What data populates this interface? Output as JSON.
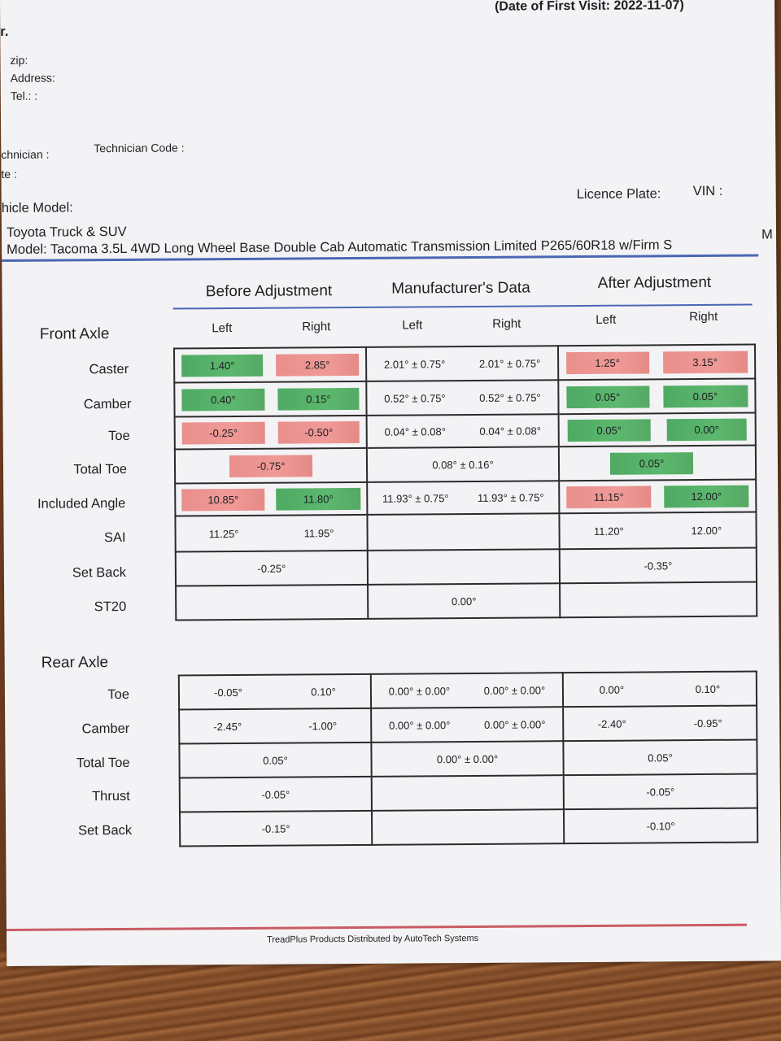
{
  "header": {
    "first_visit": "(Date of First Visit: 2022-11-07)",
    "r_fragment": "r.",
    "zip": "zip:",
    "address": "Address:",
    "tel": "Tel.: :",
    "technician": "chnician :",
    "technician_code": "Technician Code :",
    "te": "te :",
    "vehicle_model": "hicle Model:",
    "licence_plate": "Licence Plate:",
    "vin": "VIN :",
    "make": "Toyota Truck & SUV",
    "model": "Model: Tacoma 3.5L 4WD  Long Wheel Base Double Cab Automatic Transmission Limited P265/60R18 w/Firm S",
    "model_cut": "M"
  },
  "columns": {
    "before": "Before Adjustment",
    "manufacturer": "Manufacturer's Data",
    "after": "After Adjustment",
    "left": "Left",
    "right": "Right"
  },
  "front_axle": {
    "title": "Front Axle",
    "rows": [
      {
        "label": "Caster",
        "before_l": "1.40°",
        "before_l_status": "g",
        "before_r": "2.85°",
        "before_r_status": "r",
        "mfr_l": "2.01° ± 0.75°",
        "mfr_r": "2.01° ± 0.75°",
        "after_l": "1.25°",
        "after_l_status": "r",
        "after_r": "3.15°",
        "after_r_status": "r"
      },
      {
        "label": "Camber",
        "before_l": "0.40°",
        "before_l_status": "g",
        "before_r": "0.15°",
        "before_r_status": "g",
        "mfr_l": "0.52° ± 0.75°",
        "mfr_r": "0.52° ± 0.75°",
        "after_l": "0.05°",
        "after_l_status": "g",
        "after_r": "0.05°",
        "after_r_status": "g"
      },
      {
        "label": "Toe",
        "before_l": "-0.25°",
        "before_l_status": "r",
        "before_r": "-0.50°",
        "before_r_status": "r",
        "mfr_l": "0.04°  ± 0.08°",
        "mfr_r": "0.04°  ± 0.08°",
        "after_l": "0.05°",
        "after_l_status": "g",
        "after_r": "0.00°",
        "after_r_status": "g"
      },
      {
        "label": "Total Toe",
        "before": "-0.75°",
        "before_status": "r",
        "mfr": "0.08°  ± 0.16°",
        "after": "0.05°",
        "after_status": "g"
      },
      {
        "label": "Included Angle",
        "before_l": "10.85°",
        "before_l_status": "r",
        "before_r": "11.80°",
        "before_r_status": "g",
        "mfr_l": "11.93° ± 0.75°",
        "mfr_r": "11.93° ± 0.75°",
        "after_l": "11.15°",
        "after_l_status": "r",
        "after_r": "12.00°",
        "after_r_status": "g"
      },
      {
        "label": "SAI",
        "before_l": "11.25°",
        "before_r": "11.95°",
        "after_l": "11.20°",
        "after_r": "12.00°"
      },
      {
        "label": "Set Back",
        "before": "-0.25°",
        "after": "-0.35°"
      },
      {
        "label": "ST20",
        "mfr": "0.00°"
      }
    ]
  },
  "rear_axle": {
    "title": "Rear Axle",
    "rows": [
      {
        "label": "Toe",
        "before_l": "-0.05°",
        "before_r": "0.10°",
        "mfr_l": "0.00°  ± 0.00°",
        "mfr_r": "0.00°  ± 0.00°",
        "after_l": "0.00°",
        "after_r": "0.10°"
      },
      {
        "label": "Camber",
        "before_l": "-2.45°",
        "before_r": "-1.00°",
        "mfr_l": "0.00° ± 0.00°",
        "mfr_r": "0.00° ± 0.00°",
        "after_l": "-2.40°",
        "after_r": "-0.95°"
      },
      {
        "label": "Total Toe",
        "before": "0.05°",
        "mfr": "0.00°  ± 0.00°",
        "after": "0.05°"
      },
      {
        "label": "Thrust",
        "before": "-0.05°",
        "after": "-0.05°"
      },
      {
        "label": "Set Back",
        "before": "-0.15°",
        "after": "-0.10°"
      }
    ]
  },
  "footer": "TreadPlus Products Distributed by AutoTech Systems",
  "colors": {
    "in_spec": "#5cb86e",
    "out_of_spec": "#f09a97",
    "rule_red": "#c95b63",
    "rule_blue": "#4a67b4"
  }
}
